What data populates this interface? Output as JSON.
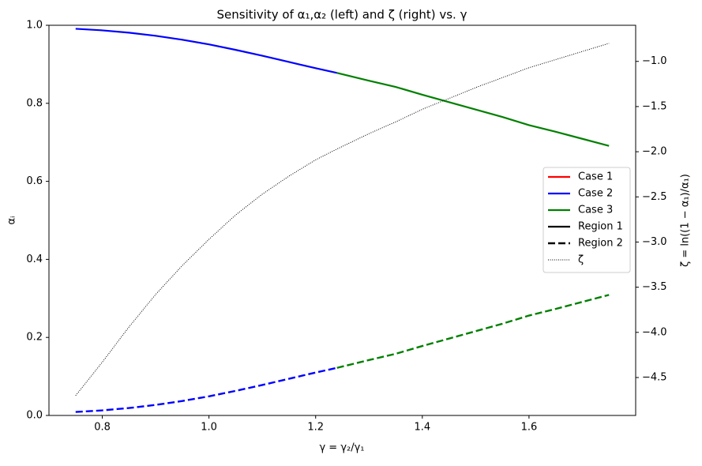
{
  "chart_data": {
    "type": "line",
    "title": "Sensitivity of α₁,α₂ (left) and ζ (right) vs. γ",
    "x_label": "γ = γ₂/γ₁",
    "y_label": "αᵢ",
    "y2_label": "ζ = ln((1 − α₁)/α₁)",
    "x": [
      0.75,
      0.8,
      0.85,
      0.9,
      0.95,
      1.0,
      1.05,
      1.1,
      1.15,
      1.2,
      1.24,
      1.3,
      1.35,
      1.4,
      1.45,
      1.5,
      1.55,
      1.6,
      1.65,
      1.7,
      1.75
    ],
    "xlim": [
      0.7,
      1.8
    ],
    "xticks": [
      0.8,
      {
        "value": 1,
        "label": "1.0"
      },
      1.2,
      1.4,
      1.6
    ],
    "ylim": [
      0,
      1
    ],
    "yticks": [
      {
        "value": 0,
        "label": "0.0"
      },
      0.2,
      0.4,
      0.6,
      0.8,
      {
        "value": 1,
        "label": "1.0"
      }
    ],
    "y2lim": [
      -4.92,
      -0.6
    ],
    "y2ticks": [
      {
        "value": -4.5,
        "label": "−4.5"
      },
      {
        "value": -4,
        "label": "−4.0"
      },
      {
        "value": -3.5,
        "label": "−3.5"
      },
      {
        "value": -3,
        "label": "−3.0"
      },
      {
        "value": -2.5,
        "label": "−2.5"
      },
      {
        "value": -2,
        "label": "−2.0"
      },
      {
        "value": -1.5,
        "label": "−1.5"
      },
      {
        "value": -1,
        "label": "−1.0"
      }
    ],
    "series": [
      {
        "color": "#0000ff",
        "style": "solid",
        "values": [
          0.991,
          0.987,
          0.981,
          0.973,
          0.963,
          0.951,
          0.937,
          0.922,
          0.906,
          0.89,
          0.878,
          null,
          null,
          null,
          null,
          null,
          null,
          null,
          null,
          null,
          null
        ]
      },
      {
        "color": "#008000",
        "style": "solid",
        "values": [
          null,
          null,
          null,
          null,
          null,
          null,
          null,
          null,
          null,
          null,
          0.878,
          0.858,
          0.842,
          0.822,
          0.803,
          0.784,
          0.765,
          0.744,
          0.727,
          0.709,
          0.691
        ]
      },
      {
        "color": "#0000ff",
        "style": "dashed",
        "values": [
          0.009,
          0.013,
          0.019,
          0.027,
          0.037,
          0.049,
          0.063,
          0.078,
          0.094,
          0.11,
          0.122,
          null,
          null,
          null,
          null,
          null,
          null,
          null,
          null,
          null,
          null
        ]
      },
      {
        "color": "#008000",
        "style": "dashed",
        "values": [
          null,
          null,
          null,
          null,
          null,
          null,
          null,
          null,
          null,
          null,
          0.122,
          0.142,
          0.158,
          0.178,
          0.197,
          0.216,
          0.235,
          0.256,
          0.273,
          0.291,
          0.309
        ]
      },
      {
        "color": "#000000",
        "style": "dotted",
        "axis": "y2",
        "values": [
          -4.7,
          -4.33,
          -3.94,
          -3.58,
          -3.26,
          -2.97,
          -2.7,
          -2.47,
          -2.27,
          -2.09,
          -1.97,
          -1.8,
          -1.67,
          -1.53,
          -1.41,
          -1.29,
          -1.18,
          -1.07,
          -0.98,
          -0.89,
          -0.8
        ]
      }
    ],
    "legend": [
      {
        "name": "Case 1",
        "color": "#ff0000",
        "style": "solid"
      },
      {
        "name": "Case 2",
        "color": "#0000ff",
        "style": "solid"
      },
      {
        "name": "Case 3",
        "color": "#008000",
        "style": "solid"
      },
      {
        "name": "Region 1",
        "color": "#000000",
        "style": "solid"
      },
      {
        "name": "Region 2",
        "color": "#000000",
        "style": "dashed"
      },
      {
        "name": "ζ",
        "color": "#000000",
        "style": "dotted"
      }
    ],
    "legend_position": "right",
    "grid": false
  }
}
